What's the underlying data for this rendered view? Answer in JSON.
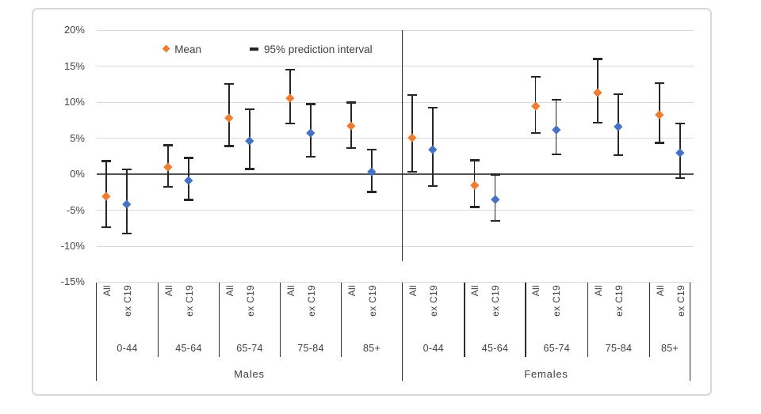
{
  "chart_data": {
    "type": "scatter",
    "description": "Mean with 95% prediction interval error bars, by sex, age group and cause (All vs ex C19)",
    "legend": [
      {
        "label": "Mean",
        "marker": "diamond",
        "color": "#ED7D31"
      },
      {
        "label": "95% prediction interval",
        "marker": "dash",
        "color": "#262626"
      }
    ],
    "y_axis": {
      "unit": "%",
      "range": [
        -15,
        20
      ],
      "grid": true,
      "ticks": [
        {
          "label": "20%",
          "value": 20
        },
        {
          "label": "15%",
          "value": 15
        },
        {
          "label": "10%",
          "value": 10
        },
        {
          "label": "5%",
          "value": 5
        },
        {
          "label": "0%",
          "value": 0
        },
        {
          "label": "-5%",
          "value": -5
        },
        {
          "label": "-10%",
          "value": -10
        },
        {
          "label": "-15%",
          "value": -15
        }
      ]
    },
    "x_axis": {
      "measure_labels": [
        "All",
        "ex C19"
      ],
      "age_groups": [
        "0-44",
        "45-64",
        "65-74",
        "75-84",
        "85+"
      ],
      "sex_groups": [
        "Males",
        "Females"
      ]
    },
    "colors": {
      "All": "#ED7D31",
      "ex C19": "#4472C4",
      "error_bar": "#262626",
      "gridline": "#D9D9D9",
      "zero_line": "#545454",
      "text": "#404040"
    },
    "series": [
      {
        "sex": "Males",
        "age": "0-44",
        "measure": "All",
        "mean": -3.1,
        "lo": -7.4,
        "hi": 1.8
      },
      {
        "sex": "Males",
        "age": "0-44",
        "measure": "ex C19",
        "mean": -4.2,
        "lo": -8.3,
        "hi": 0.6
      },
      {
        "sex": "Males",
        "age": "45-64",
        "measure": "All",
        "mean": 1.0,
        "lo": -1.8,
        "hi": 4.0
      },
      {
        "sex": "Males",
        "age": "45-64",
        "measure": "ex C19",
        "mean": -0.9,
        "lo": -3.6,
        "hi": 2.2
      },
      {
        "sex": "Males",
        "age": "65-74",
        "measure": "All",
        "mean": 7.8,
        "lo": 3.9,
        "hi": 12.5
      },
      {
        "sex": "Males",
        "age": "65-74",
        "measure": "ex C19",
        "mean": 4.6,
        "lo": 0.7,
        "hi": 9.0
      },
      {
        "sex": "Males",
        "age": "75-84",
        "measure": "All",
        "mean": 10.5,
        "lo": 7.0,
        "hi": 14.5
      },
      {
        "sex": "Males",
        "age": "75-84",
        "measure": "ex C19",
        "mean": 5.7,
        "lo": 2.4,
        "hi": 9.7
      },
      {
        "sex": "Males",
        "age": "85+",
        "measure": "All",
        "mean": 6.7,
        "lo": 3.6,
        "hi": 9.9
      },
      {
        "sex": "Males",
        "age": "85+",
        "measure": "ex C19",
        "mean": 0.3,
        "lo": -2.5,
        "hi": 3.4
      },
      {
        "sex": "Females",
        "age": "0-44",
        "measure": "All",
        "mean": 5.0,
        "lo": 0.3,
        "hi": 11.0
      },
      {
        "sex": "Females",
        "age": "0-44",
        "measure": "ex C19",
        "mean": 3.4,
        "lo": -1.7,
        "hi": 9.2
      },
      {
        "sex": "Females",
        "age": "45-64",
        "measure": "All",
        "mean": -1.6,
        "lo": -4.6,
        "hi": 1.9
      },
      {
        "sex": "Females",
        "age": "45-64",
        "measure": "ex C19",
        "mean": -3.5,
        "lo": -6.5,
        "hi": -0.1
      },
      {
        "sex": "Females",
        "age": "65-74",
        "measure": "All",
        "mean": 9.4,
        "lo": 5.7,
        "hi": 13.5
      },
      {
        "sex": "Females",
        "age": "65-74",
        "measure": "ex C19",
        "mean": 6.2,
        "lo": 2.7,
        "hi": 10.3
      },
      {
        "sex": "Females",
        "age": "75-84",
        "measure": "All",
        "mean": 11.3,
        "lo": 7.1,
        "hi": 16.0
      },
      {
        "sex": "Females",
        "age": "75-84",
        "measure": "ex C19",
        "mean": 6.6,
        "lo": 2.6,
        "hi": 11.1
      },
      {
        "sex": "Females",
        "age": "85+",
        "measure": "All",
        "mean": 8.2,
        "lo": 4.3,
        "hi": 12.6
      },
      {
        "sex": "Females",
        "age": "85+",
        "measure": "ex C19",
        "mean": 3.0,
        "lo": -0.6,
        "hi": 7.0
      }
    ]
  }
}
